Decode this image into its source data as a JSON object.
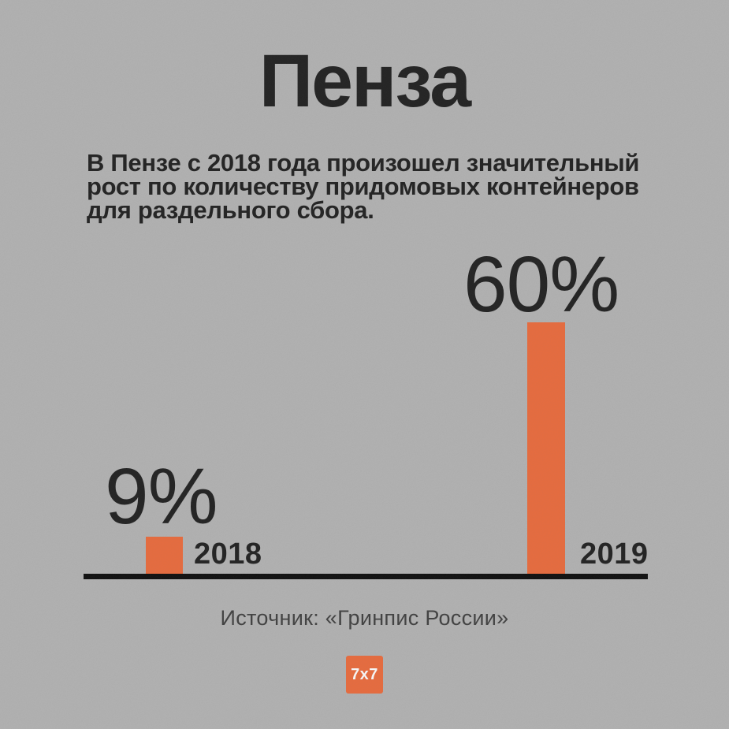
{
  "title": "Пенза",
  "subtitle": {
    "lines": [
      "В Пензе с 2018 года произошел значительный",
      "рост по количеству придомовых контейнеров",
      "для раздельного сбора."
    ]
  },
  "chart_data": {
    "type": "bar",
    "categories": [
      "2018",
      "2019"
    ],
    "values": [
      9,
      60
    ],
    "unit": "%",
    "value_labels": [
      "9%",
      "60%"
    ],
    "title": "Пенза",
    "xlabel": "",
    "ylabel": "",
    "ylim": [
      0,
      60
    ],
    "grid": false,
    "legend_position": "none",
    "bar_color": "#ec6b3c",
    "axis_color": "#0c0c0c"
  },
  "source": "Источник: «Гринпис России»",
  "logo": {
    "text": "7x7",
    "bg_color": "#ec6b3c",
    "text_color": "#ffffff"
  },
  "colors": {
    "background": "#b4b4b4",
    "heading_text": "#1f1f1f",
    "source_text": "#3f3f3f"
  }
}
